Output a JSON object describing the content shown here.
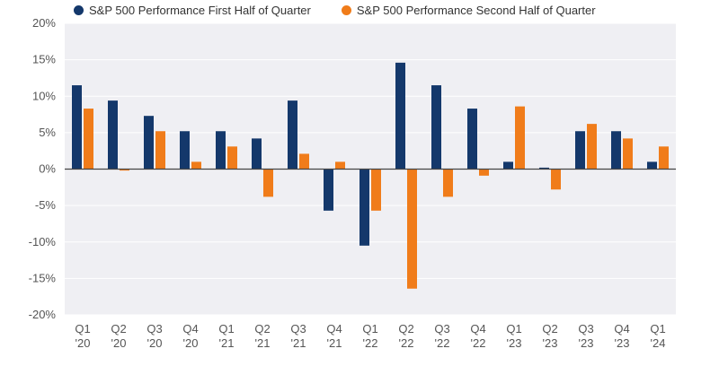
{
  "chart_data": {
    "type": "bar",
    "title": "",
    "xlabel": "",
    "ylabel": "",
    "ylim": [
      -20,
      20
    ],
    "yticks": [
      20,
      15,
      10,
      5,
      0,
      -5,
      -10,
      -15,
      -20
    ],
    "ytick_labels": [
      "20%",
      "15%",
      "10%",
      "5%",
      "0%",
      "-5%",
      "-10%",
      "-15%",
      "-20%"
    ],
    "categories": [
      "Q1 '20",
      "Q2 '20",
      "Q3 '20",
      "Q4 '20",
      "Q1 '21",
      "Q2 '21",
      "Q3 '21",
      "Q4 '21",
      "Q1 '22",
      "Q2 '22",
      "Q3 '22",
      "Q4 '22",
      "Q1 '23",
      "Q2 '23",
      "Q3 '23",
      "Q4 '23",
      "Q1 '24"
    ],
    "category_lines": [
      [
        "Q1",
        "'20"
      ],
      [
        "Q2",
        "'20"
      ],
      [
        "Q3",
        "'20"
      ],
      [
        "Q4",
        "'20"
      ],
      [
        "Q1",
        "'21"
      ],
      [
        "Q2",
        "'21"
      ],
      [
        "Q3",
        "'21"
      ],
      [
        "Q4",
        "'21"
      ],
      [
        "Q1",
        "'22"
      ],
      [
        "Q2",
        "'22"
      ],
      [
        "Q3",
        "'22"
      ],
      [
        "Q4",
        "'22"
      ],
      [
        "Q1",
        "'23"
      ],
      [
        "Q2",
        "'23"
      ],
      [
        "Q3",
        "'23"
      ],
      [
        "Q4",
        "'23"
      ],
      [
        "Q1",
        "'24"
      ]
    ],
    "series": [
      {
        "name": "S&P 500 Performance First Half of Quarter",
        "color": "#14386b",
        "values": [
          11.5,
          9.4,
          7.3,
          5.2,
          5.2,
          4.2,
          9.4,
          -5.7,
          -10.5,
          14.6,
          11.5,
          8.3,
          1.0,
          0.2,
          5.2,
          5.2,
          1.0
        ]
      },
      {
        "name": "S&P 500 Performance Second Half of Quarter",
        "color": "#f07c1a",
        "values": [
          8.3,
          -0.2,
          5.2,
          1.0,
          3.1,
          -3.8,
          2.1,
          1.0,
          -5.7,
          -16.4,
          -3.8,
          -0.9,
          8.6,
          -2.8,
          6.2,
          4.2,
          3.1
        ]
      }
    ],
    "grid": true,
    "legend_position": "top-left"
  },
  "colors": {
    "plot_background": "#efeff3",
    "zero_line": "#444444",
    "grid": "#ffffff",
    "axis_text": "#555555"
  }
}
